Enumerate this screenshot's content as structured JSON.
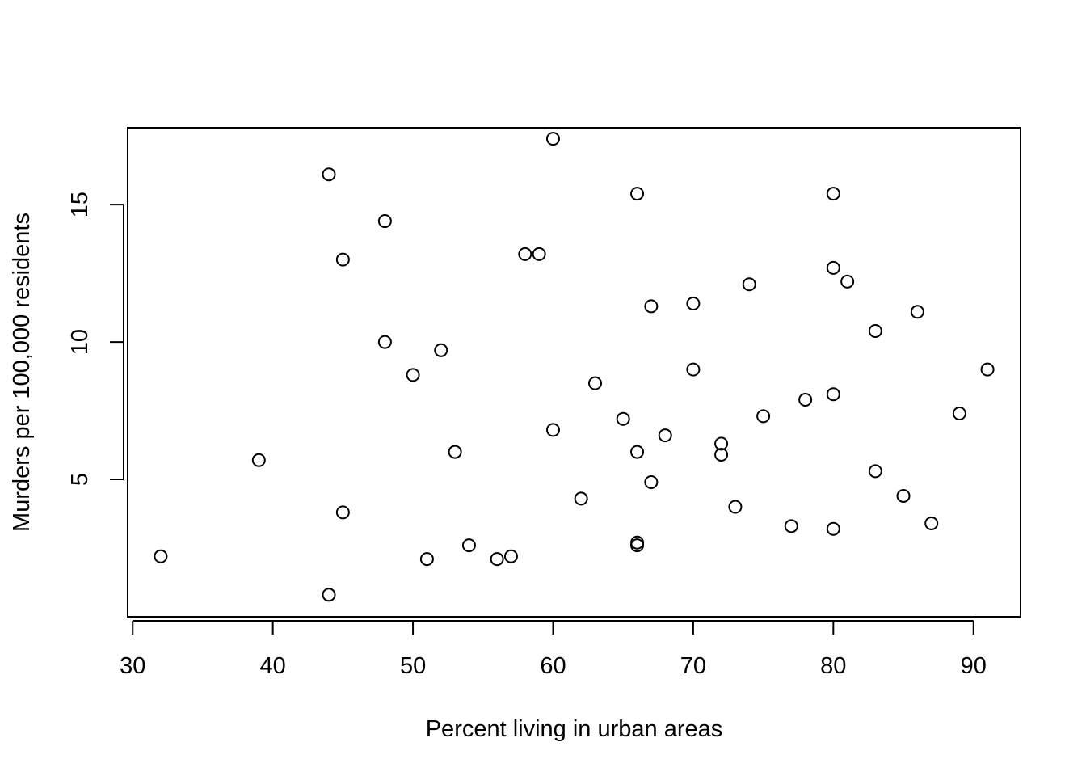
{
  "chart_data": {
    "type": "scatter",
    "title": "",
    "xlabel": "Percent living in urban areas",
    "ylabel": "Murders per 100,000 residents",
    "xlim": [
      29.64,
      93.36
    ],
    "ylim": [
      0.0,
      17.8
    ],
    "x_ticks": [
      30,
      40,
      50,
      60,
      70,
      80,
      90
    ],
    "y_ticks": [
      5,
      10,
      15
    ],
    "grid": false,
    "legend": "none",
    "x": [
      32,
      39,
      44,
      44,
      45,
      45,
      48,
      48,
      50,
      51,
      52,
      53,
      54,
      56,
      57,
      58,
      59,
      60,
      60,
      62,
      63,
      65,
      66,
      66,
      66,
      66,
      67,
      67,
      68,
      70,
      70,
      72,
      72,
      73,
      74,
      75,
      77,
      78,
      80,
      80,
      80,
      80,
      81,
      83,
      83,
      85,
      86,
      87,
      89,
      91
    ],
    "y": [
      2.2,
      5.7,
      16.1,
      0.8,
      13.0,
      3.8,
      14.4,
      10.0,
      8.8,
      2.1,
      9.7,
      6.0,
      2.6,
      2.1,
      2.2,
      13.2,
      13.2,
      17.4,
      6.8,
      4.3,
      8.5,
      7.2,
      15.4,
      6.0,
      2.7,
      2.6,
      11.3,
      4.9,
      6.6,
      11.4,
      9.0,
      6.3,
      5.9,
      4.0,
      12.1,
      7.3,
      3.3,
      7.9,
      15.4,
      12.7,
      8.1,
      3.2,
      12.2,
      10.4,
      5.3,
      4.4,
      11.1,
      3.4,
      7.4,
      9.0
    ]
  }
}
